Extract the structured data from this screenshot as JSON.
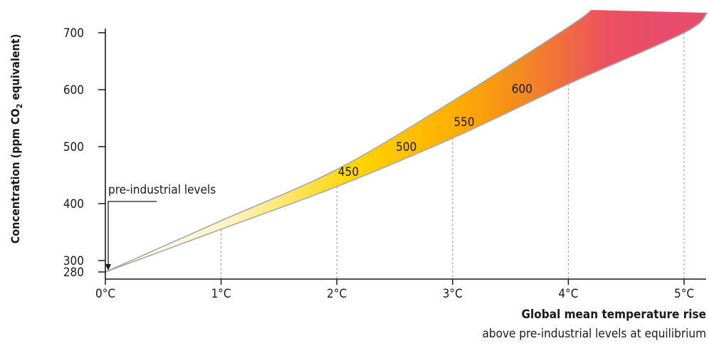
{
  "chart_data": {
    "type": "area",
    "title": "",
    "ylabel": "Concentration (ppm CO",
    "ylabel_sub": "2",
    "ylabel_tail": " equivalent)",
    "xlabel": "Global mean temperature rise",
    "xlabel_sub": "above pre-industrial levels at equilibrium",
    "x_ticks": [
      "0°C",
      "1°C",
      "2°C",
      "3°C",
      "4°C",
      "5°C"
    ],
    "y_ticks": [
      280,
      300,
      400,
      500,
      600,
      700
    ],
    "xlim": [
      0,
      5.2
    ],
    "ylim": [
      280,
      740
    ],
    "series": [
      {
        "name": "upper",
        "x": [
          0,
          1,
          2,
          3,
          4,
          4.2
        ],
        "y": [
          280,
          370,
          460,
          580,
          710,
          740
        ]
      },
      {
        "name": "lower",
        "x": [
          0,
          1,
          2,
          3,
          4,
          5,
          5.2
        ],
        "y": [
          280,
          355,
          430,
          515,
          610,
          700,
          735
        ]
      }
    ],
    "band_labels": [
      {
        "text": "450",
        "x": 2.1,
        "y": 456
      },
      {
        "text": "500",
        "x": 2.6,
        "y": 500
      },
      {
        "text": "550",
        "x": 3.1,
        "y": 544
      },
      {
        "text": "600",
        "x": 3.6,
        "y": 602
      }
    ],
    "annotation": {
      "text": "pre-industrial levels",
      "x": 0,
      "y": 280
    },
    "colors": {
      "start": "#fffbe6",
      "mid": "#ffd700",
      "orange": "#f39a1f",
      "end": "#ea4d6e"
    }
  }
}
